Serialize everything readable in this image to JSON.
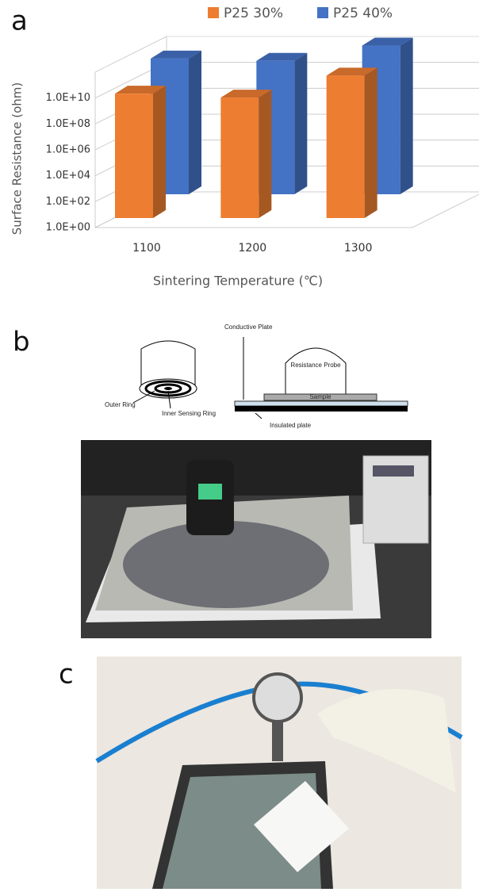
{
  "panel_labels": {
    "a": "a",
    "b": "b",
    "c": "c"
  },
  "chart_data": {
    "type": "bar3d",
    "categories": [
      "1100",
      "1200",
      "1300"
    ],
    "series": [
      {
        "name": "P25 30%",
        "color": "#ed7d31",
        "values": [
          4000000000,
          2000000000,
          100000000000
        ]
      },
      {
        "name": "P25 40%",
        "color": "#4472c4",
        "values": [
          30000000000,
          20000000000,
          300000000000
        ]
      }
    ],
    "y_label": "Surface Resistance (ohm)",
    "x_label": "Sintering Temperature (℃)",
    "log_scale": true,
    "ylim": [
      1,
      1000000000000
    ],
    "yticks": [
      {
        "value": 1,
        "label": "1.0E+00"
      },
      {
        "value": 100,
        "label": "1.0E+02"
      },
      {
        "value": 10000,
        "label": "1.0E+04"
      },
      {
        "value": 1000000,
        "label": "1.0E+06"
      },
      {
        "value": 100000000,
        "label": "1.0E+08"
      },
      {
        "value": 10000000000,
        "label": "1.0E+10"
      }
    ],
    "grid": true,
    "legend": "top"
  },
  "diagram": {
    "conductive_plate": "Conductive Plate",
    "resistance_probe": "Resistance Probe",
    "sample": "Sample",
    "outer_ring": "Outer Ring",
    "inner_ring": "Inner Sensing Ring",
    "insulated_plate": "Insulated plate"
  }
}
